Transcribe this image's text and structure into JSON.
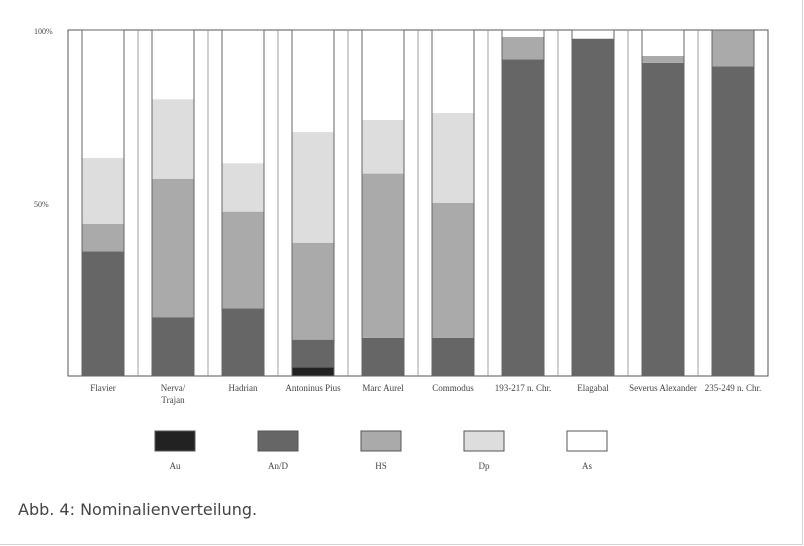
{
  "chart_data": {
    "type": "bar",
    "stacked": true,
    "ylim": [
      0,
      100
    ],
    "yticks": [
      {
        "value": 50,
        "label": "50%"
      },
      {
        "value": 100,
        "label": "100%"
      }
    ],
    "categories": [
      [
        "Flavier"
      ],
      [
        "Nerva/",
        "Trajan"
      ],
      [
        "Hadrian"
      ],
      [
        "Antoninus Pius"
      ],
      [
        "Marc Aurel"
      ],
      [
        "Commodus"
      ],
      [
        "193-217 n. Chr."
      ],
      [
        "Elagabal"
      ],
      [
        "Severus Alexander"
      ],
      [
        "235-249 n. Chr."
      ]
    ],
    "series": [
      {
        "name": "Au",
        "color": "#222222",
        "values": [
          0,
          0,
          0,
          2.5,
          0,
          0,
          0,
          0,
          0,
          0
        ]
      },
      {
        "name": "An/D",
        "color": "#666666",
        "values": [
          36,
          17,
          19.5,
          8,
          11,
          11,
          91.5,
          97.5,
          90.5,
          89.5
        ]
      },
      {
        "name": "HS",
        "color": "#aaaaaa",
        "values": [
          8,
          40,
          28,
          28,
          47.5,
          39,
          6.5,
          0,
          2,
          10.5
        ]
      },
      {
        "name": "Dp",
        "color": "#dddddd",
        "values": [
          19,
          23,
          14,
          32,
          15.5,
          26,
          0,
          0,
          0,
          0
        ]
      },
      {
        "name": "As",
        "color": "#ffffff",
        "values": [
          37,
          20,
          38.5,
          29.5,
          26,
          24,
          2,
          2.5,
          7.5,
          0
        ]
      }
    ],
    "legend_position": "bottom"
  },
  "caption": "Abb. 4: Nominalienverteilung."
}
